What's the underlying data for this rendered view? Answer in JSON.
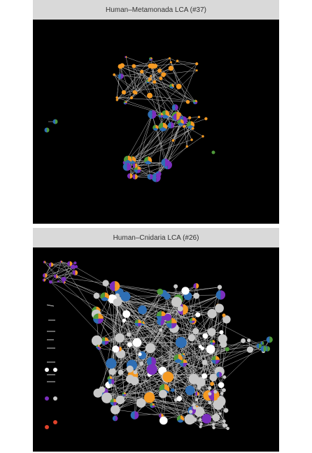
{
  "panels": [
    {
      "title": "Human–Metamonada LCA (#37)"
    },
    {
      "title": "Human–Cnidaria LCA (#26)"
    }
  ],
  "palette": {
    "edge": "#bdbdbd",
    "orange": "#f59a23",
    "purple": "#7b2fbe",
    "blue": "#2f6fb5",
    "green": "#4f9a3a",
    "red": "#e0432b",
    "grey": "#c8c8c8",
    "white": "#ffffff"
  }
}
